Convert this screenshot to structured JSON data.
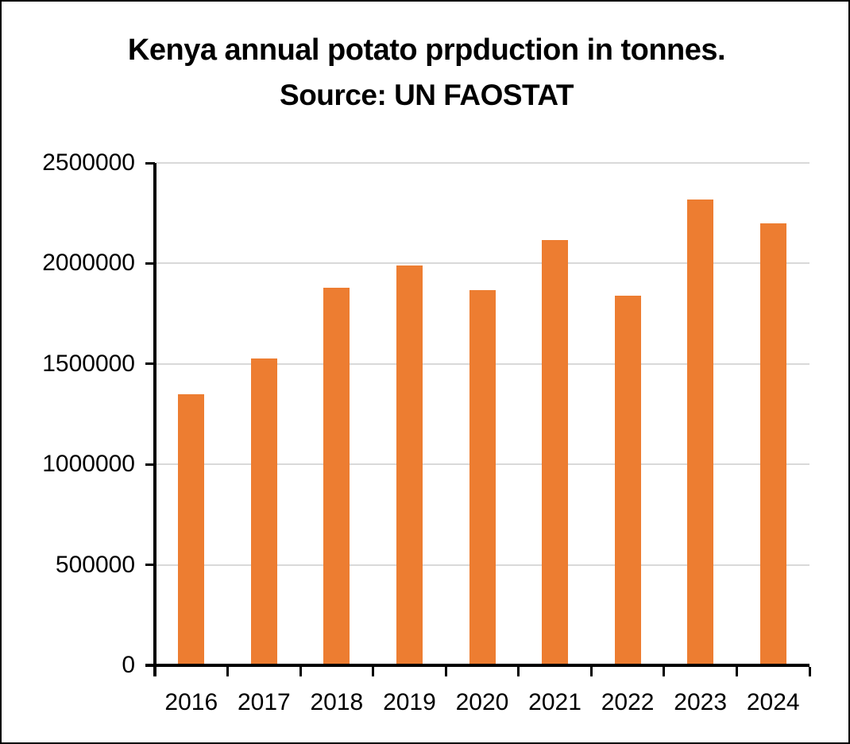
{
  "figure": {
    "title_line1": "Kenya annual potato prpduction in tonnes.",
    "title_line2": "Source: UN FAOSTAT"
  },
  "chart_data": {
    "type": "bar",
    "title": "Kenya annual potato prpduction in tonnes. Source: UN FAOSTAT",
    "categories": [
      "2016",
      "2017",
      "2018",
      "2019",
      "2020",
      "2021",
      "2022",
      "2023",
      "2024"
    ],
    "values": [
      1340000,
      1520000,
      1870000,
      1980000,
      1860000,
      2110000,
      1830000,
      2310000,
      2190000
    ],
    "xlabel": "",
    "ylabel": "",
    "ylim": [
      0,
      2500000
    ],
    "yticks": [
      0,
      500000,
      1000000,
      1500000,
      2000000,
      2500000
    ],
    "ytick_labels": [
      "0",
      "500000",
      "1000000",
      "1500000",
      "2000000",
      "2500000"
    ],
    "grid": true,
    "legend_position": "none",
    "bar_color": "#ED7D31",
    "gridline_color": "#D9D9D9",
    "axis_color": "#000000"
  }
}
